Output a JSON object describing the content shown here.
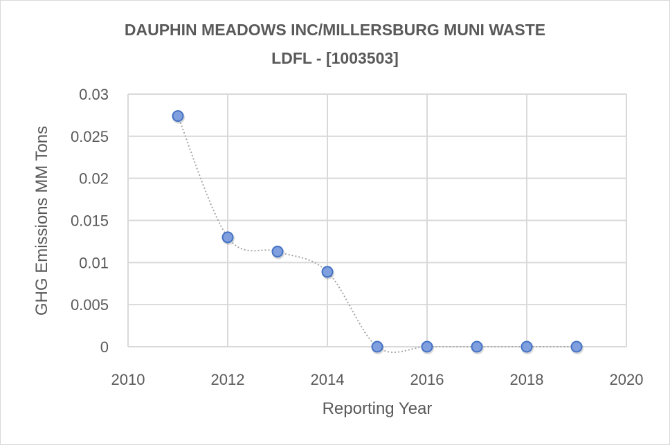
{
  "chart_data": {
    "type": "scatter",
    "title_line1": "DAUPHIN MEADOWS INC/MILLERSBURG MUNI WASTE",
    "title_line2": "LDFL - [1003503]",
    "xlabel": "Reporting Year",
    "ylabel": "GHG Emissions MM Tons",
    "xlim": [
      2010,
      2020
    ],
    "ylim": [
      0,
      0.03
    ],
    "xticks": [
      2010,
      2012,
      2014,
      2016,
      2018,
      2020
    ],
    "yticks": [
      0,
      0.005,
      0.01,
      0.015,
      0.02,
      0.025,
      0.03
    ],
    "grid": true,
    "line_style": "smoothed dotted",
    "marker_color": "#7f9fdf",
    "marker_edge": "#4472c4",
    "series": [
      {
        "name": "GHG Emissions",
        "x": [
          2011,
          2012,
          2013,
          2014,
          2015,
          2016,
          2017,
          2018,
          2019
        ],
        "y": [
          0.0274,
          0.013,
          0.0113,
          0.0089,
          0,
          0,
          0,
          0,
          0
        ]
      }
    ]
  }
}
